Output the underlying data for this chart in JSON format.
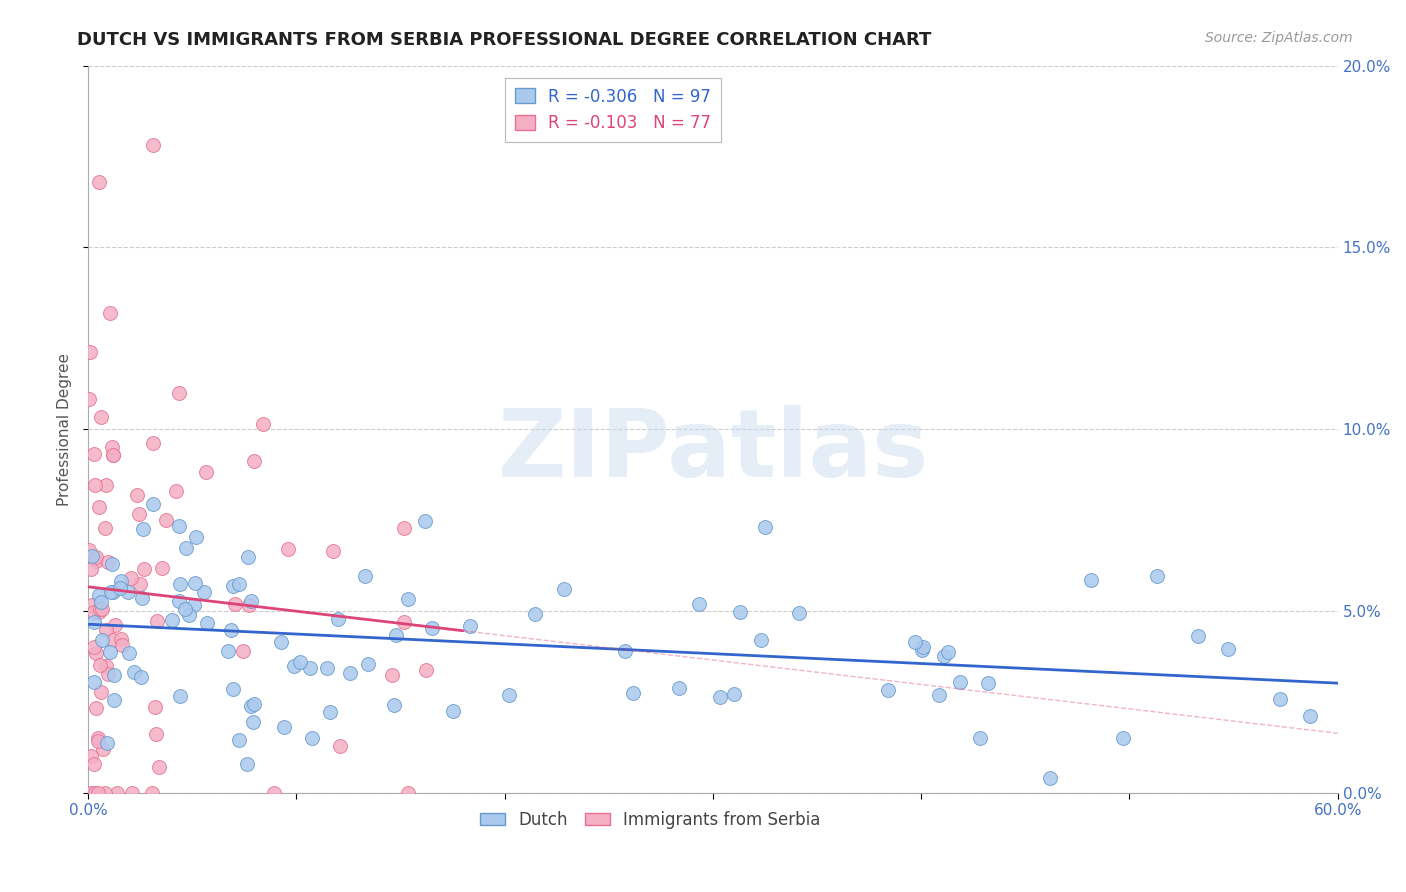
{
  "title": "DUTCH VS IMMIGRANTS FROM SERBIA PROFESSIONAL DEGREE CORRELATION CHART",
  "source": "Source: ZipAtlas.com",
  "ylabel": "Professional Degree",
  "xlim": [
    0.0,
    0.6
  ],
  "ylim": [
    0.0,
    0.2
  ],
  "xticks": [
    0.0,
    0.1,
    0.2,
    0.3,
    0.4,
    0.5,
    0.6
  ],
  "yticks": [
    0.0,
    0.05,
    0.1,
    0.15,
    0.2
  ],
  "dutch_color": "#aac9ee",
  "serbia_color": "#f4afc5",
  "dutch_edge_color": "#6699cc",
  "serbia_edge_color": "#e87090",
  "dutch_line_color": "#3366cc",
  "serbia_line_color": "#dd4477",
  "dutch_R": -0.306,
  "dutch_N": 97,
  "serbia_R": -0.103,
  "serbia_N": 77,
  "watermark_text": "ZIPatlas",
  "title_fontsize": 13,
  "source_fontsize": 10,
  "ylabel_fontsize": 11,
  "tick_fontsize": 11,
  "legend_fontsize": 12,
  "marker_size": 100
}
